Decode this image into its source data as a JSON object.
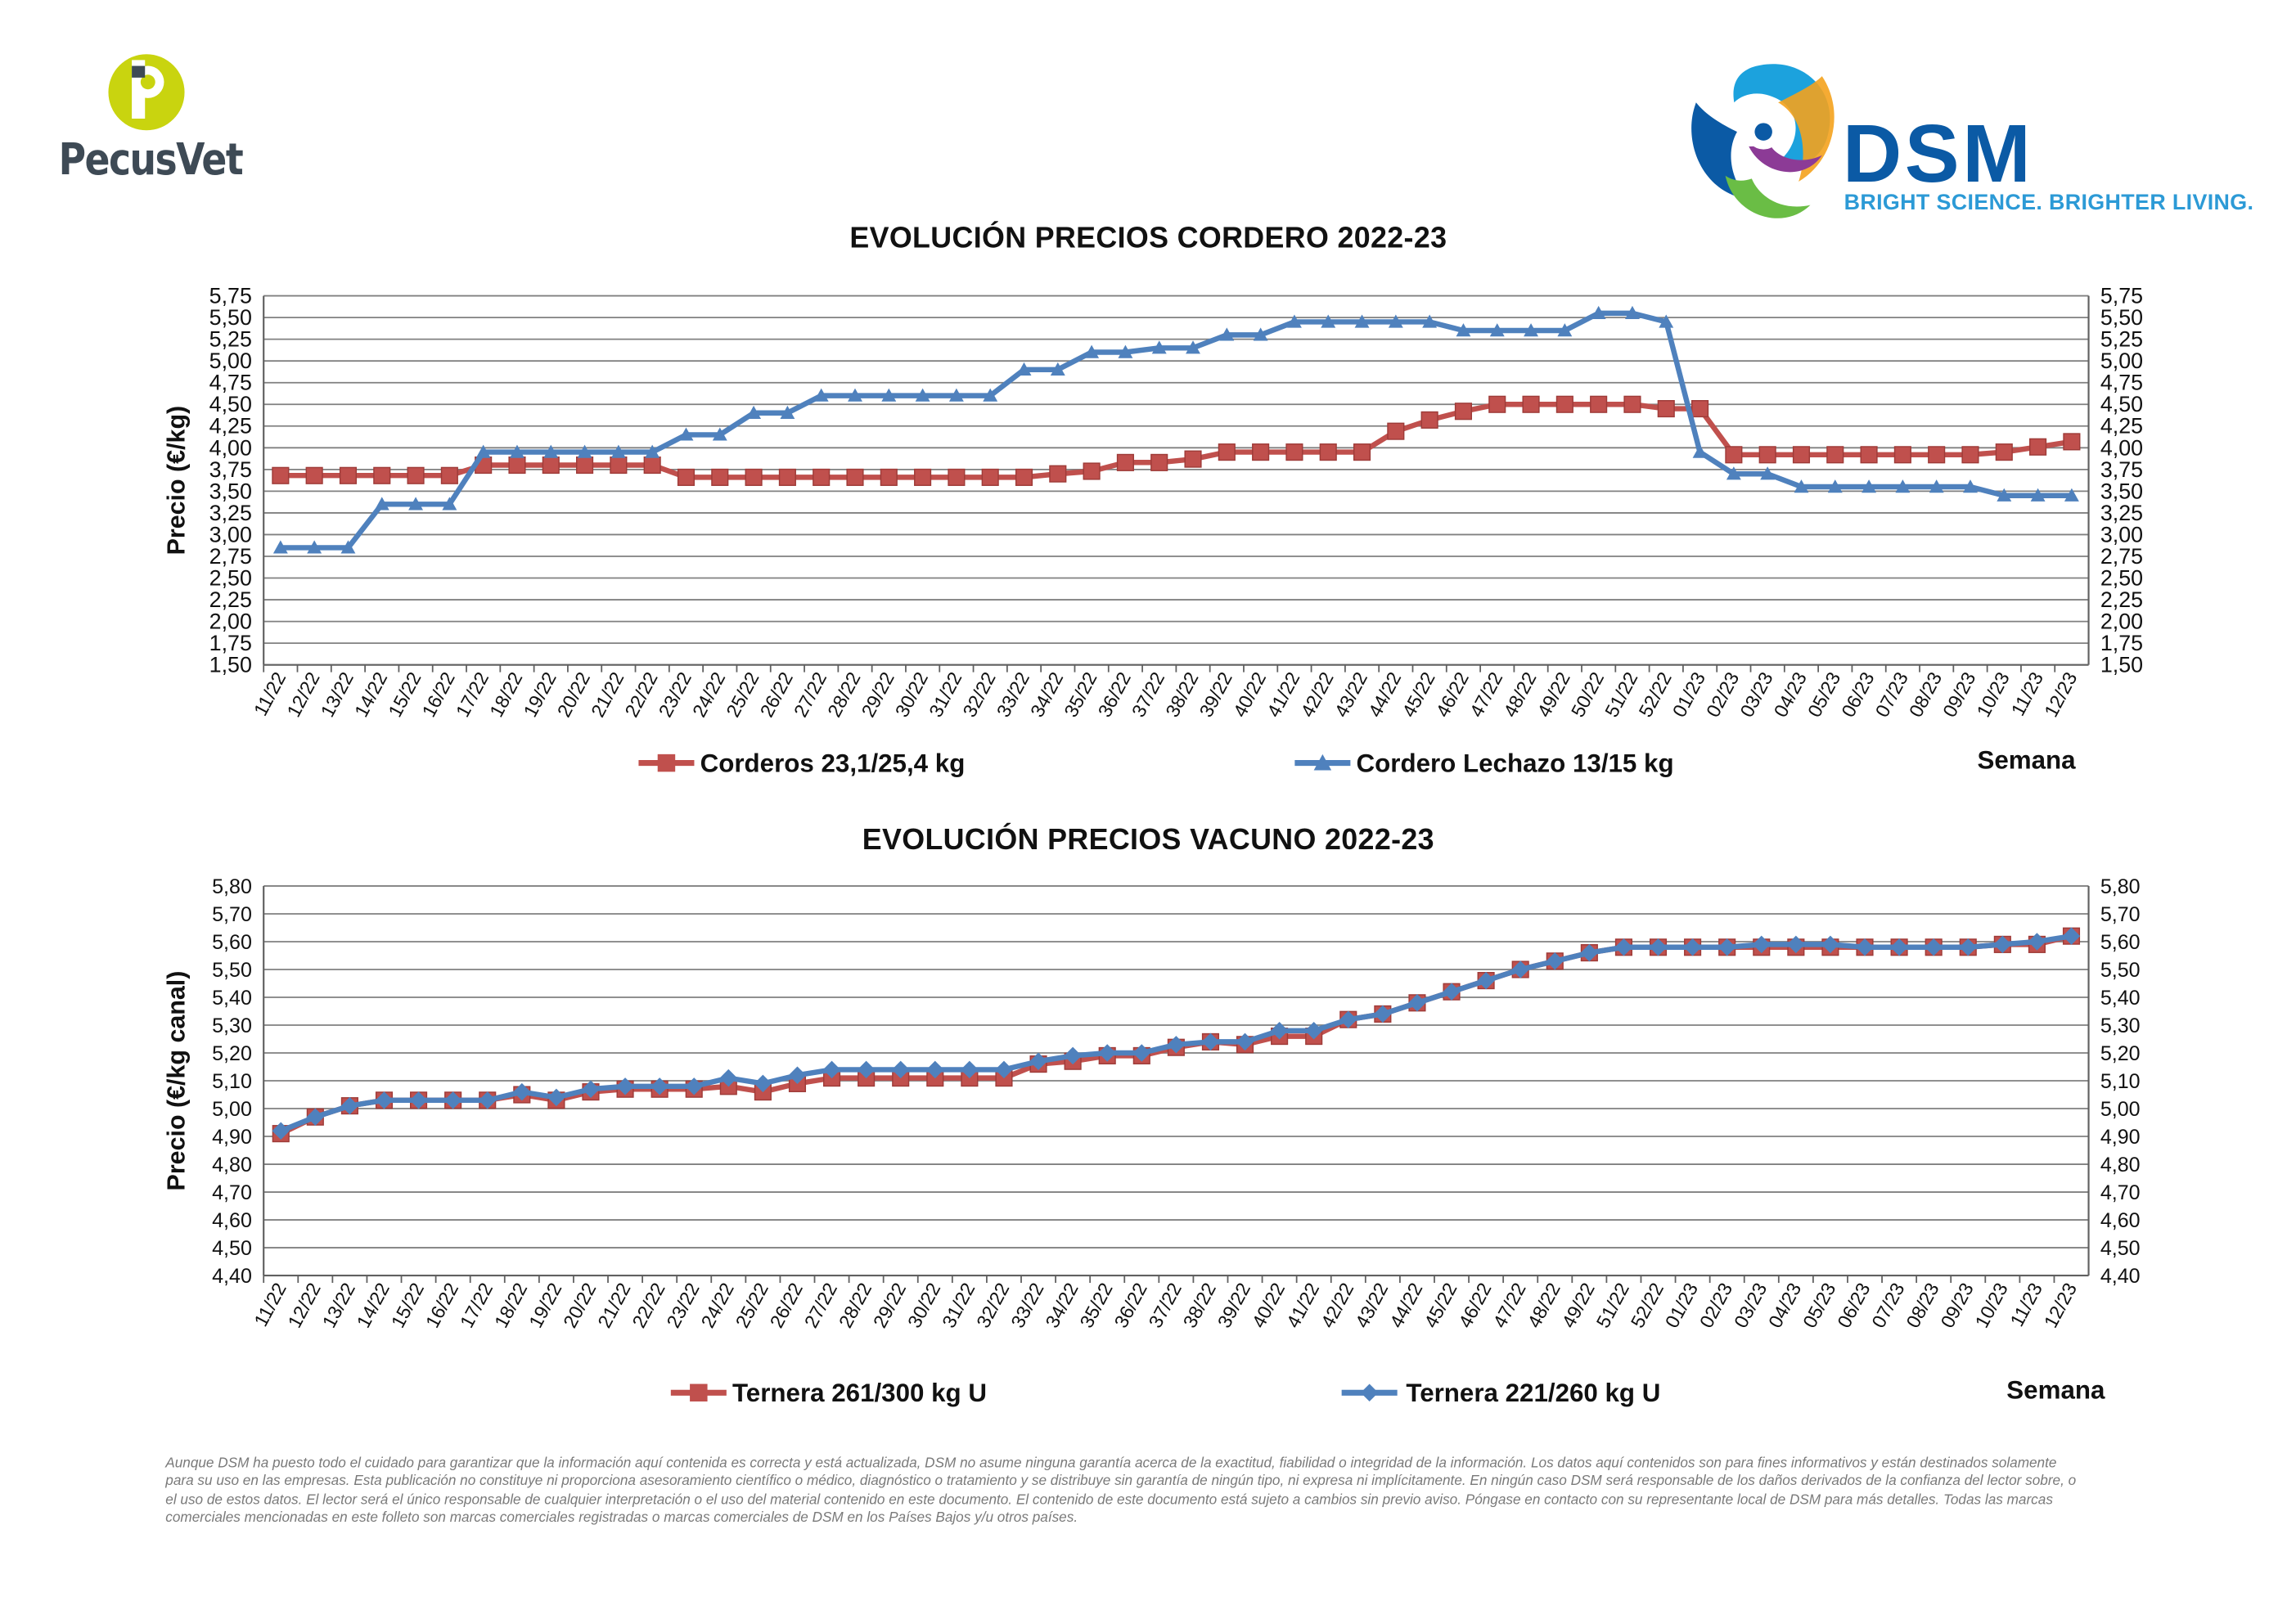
{
  "logos": {
    "pecusvet": {
      "text": "PecusVet"
    },
    "dsm": {
      "text": "DSM",
      "slogan": "BRIGHT SCIENCE. BRIGHTER LIVING."
    }
  },
  "colors": {
    "red": "#c0504d",
    "blue": "#4f81bd",
    "grid": "#808080"
  },
  "disclaimer": "Aunque DSM ha puesto todo el cuidado para garantizar que la información aquí contenida es correcta y está actualizada, DSM no asume ninguna garantía acerca de la exactitud, fiabilidad o integridad de la información. Los datos aquí contenidos son para fines informativos y están destinados solamente para su uso en las empresas. Esta publicación no constituye ni proporciona asesoramiento científico o médico, diagnóstico o tratamiento y se distribuye sin garantía de ningún tipo, ni expresa ni implícitamente. En ningún caso DSM será responsable de los daños derivados de la confianza del lector sobre, o el uso de estos datos. El lector será el único responsable de cualquier interpretación o el uso del material contenido en este documento. El contenido de este documento está sujeto a cambios sin previo aviso. Póngase en contacto con su representante local de DSM para más detalles. Todas las marcas comerciales mencionadas en este folleto son marcas comerciales registradas o marcas comerciales de DSM en los Países Bajos y/u otros países.",
  "chart_data": [
    {
      "type": "line",
      "title": "EVOLUCIÓN PRECIOS CORDERO 2022-23",
      "ylabel": "Precio (€/kg)",
      "xlabel": "Semana",
      "ylim": [
        1.5,
        5.75
      ],
      "ystep": 0.25,
      "ydecimals": 2,
      "categories": [
        "11/22",
        "12/22",
        "13/22",
        "14/22",
        "15/22",
        "16/22",
        "17/22",
        "18/22",
        "19/22",
        "20/22",
        "21/22",
        "22/22",
        "23/22",
        "24/22",
        "25/22",
        "26/22",
        "27/22",
        "28/22",
        "29/22",
        "30/22",
        "31/22",
        "32/22",
        "33/22",
        "34/22",
        "35/22",
        "36/22",
        "37/22",
        "38/22",
        "39/22",
        "40/22",
        "41/22",
        "42/22",
        "43/22",
        "44/22",
        "45/22",
        "46/22",
        "47/22",
        "48/22",
        "49/22",
        "50/22",
        "51/22",
        "52/22",
        "01/23",
        "02/23",
        "03/23",
        "04/23",
        "05/23",
        "06/23",
        "07/23",
        "08/23",
        "09/23",
        "10/23",
        "11/23",
        "12/23"
      ],
      "series": [
        {
          "name": "Corderos 23,1/25,4 kg",
          "color": "#c0504d",
          "marker": "square",
          "values": [
            3.68,
            3.68,
            3.68,
            3.68,
            3.68,
            3.68,
            3.8,
            3.8,
            3.8,
            3.8,
            3.8,
            3.8,
            3.66,
            3.66,
            3.66,
            3.66,
            3.66,
            3.66,
            3.66,
            3.66,
            3.66,
            3.66,
            3.66,
            3.7,
            3.73,
            3.83,
            3.83,
            3.87,
            3.95,
            3.95,
            3.95,
            3.95,
            3.95,
            4.19,
            4.32,
            4.42,
            4.5,
            4.5,
            4.5,
            4.5,
            4.5,
            4.45,
            4.45,
            3.92,
            3.92,
            3.92,
            3.92,
            3.92,
            3.92,
            3.92,
            3.92,
            3.95,
            4.01,
            4.07
          ]
        },
        {
          "name": "Cordero Lechazo 13/15 kg",
          "color": "#4f81bd",
          "marker": "triangle",
          "values": [
            2.85,
            2.85,
            2.85,
            3.35,
            3.35,
            3.35,
            3.95,
            3.95,
            3.95,
            3.95,
            3.95,
            3.95,
            4.15,
            4.15,
            4.4,
            4.4,
            4.6,
            4.6,
            4.6,
            4.6,
            4.6,
            4.6,
            4.9,
            4.9,
            5.1,
            5.1,
            5.15,
            5.15,
            5.3,
            5.3,
            5.45,
            5.45,
            5.45,
            5.45,
            5.45,
            5.35,
            5.35,
            5.35,
            5.35,
            5.55,
            5.55,
            5.45,
            3.95,
            3.7,
            3.7,
            3.55,
            3.55,
            3.55,
            3.55,
            3.55,
            3.55,
            3.45,
            3.45,
            3.45
          ]
        }
      ]
    },
    {
      "type": "line",
      "title": "EVOLUCIÓN PRECIOS VACUNO 2022-23",
      "ylabel": "Precio (€/kg canal)",
      "xlabel": "Semana",
      "ylim": [
        4.4,
        5.8
      ],
      "ystep": 0.1,
      "ydecimals": 2,
      "categories": [
        "11/22",
        "12/22",
        "13/22",
        "14/22",
        "15/22",
        "16/22",
        "17/22",
        "18/22",
        "19/22",
        "20/22",
        "21/22",
        "22/22",
        "23/22",
        "24/22",
        "25/22",
        "26/22",
        "27/22",
        "28/22",
        "29/22",
        "30/22",
        "31/22",
        "32/22",
        "33/22",
        "34/22",
        "35/22",
        "36/22",
        "37/22",
        "38/22",
        "39/22",
        "40/22",
        "41/22",
        "42/22",
        "43/22",
        "44/22",
        "45/22",
        "46/22",
        "47/22",
        "48/22",
        "49/22",
        "51/22",
        "52/22",
        "01/23",
        "02/23",
        "03/23",
        "04/23",
        "05/23",
        "06/23",
        "07/23",
        "08/23",
        "09/23",
        "10/23",
        "11/23",
        "12/23"
      ],
      "series": [
        {
          "name": "Ternera 261/300 kg U",
          "color": "#c0504d",
          "marker": "square",
          "values": [
            4.91,
            4.97,
            5.01,
            5.03,
            5.03,
            5.03,
            5.03,
            5.05,
            5.03,
            5.06,
            5.07,
            5.07,
            5.07,
            5.08,
            5.06,
            5.09,
            5.11,
            5.11,
            5.11,
            5.11,
            5.11,
            5.11,
            5.16,
            5.17,
            5.19,
            5.19,
            5.22,
            5.24,
            5.23,
            5.26,
            5.26,
            5.32,
            5.34,
            5.38,
            5.42,
            5.46,
            5.5,
            5.53,
            5.56,
            5.58,
            5.58,
            5.58,
            5.58,
            5.58,
            5.58,
            5.58,
            5.58,
            5.58,
            5.58,
            5.58,
            5.59,
            5.59,
            5.62
          ]
        },
        {
          "name": "Ternera 221/260 kg U",
          "color": "#4f81bd",
          "marker": "diamond",
          "values": [
            4.92,
            4.97,
            5.01,
            5.03,
            5.03,
            5.03,
            5.03,
            5.06,
            5.04,
            5.07,
            5.08,
            5.08,
            5.08,
            5.11,
            5.09,
            5.12,
            5.14,
            5.14,
            5.14,
            5.14,
            5.14,
            5.14,
            5.17,
            5.19,
            5.2,
            5.2,
            5.23,
            5.24,
            5.24,
            5.28,
            5.28,
            5.32,
            5.34,
            5.38,
            5.42,
            5.46,
            5.5,
            5.53,
            5.56,
            5.58,
            5.58,
            5.58,
            5.58,
            5.59,
            5.59,
            5.59,
            5.58,
            5.58,
            5.58,
            5.58,
            5.59,
            5.6,
            5.62
          ]
        }
      ]
    }
  ]
}
